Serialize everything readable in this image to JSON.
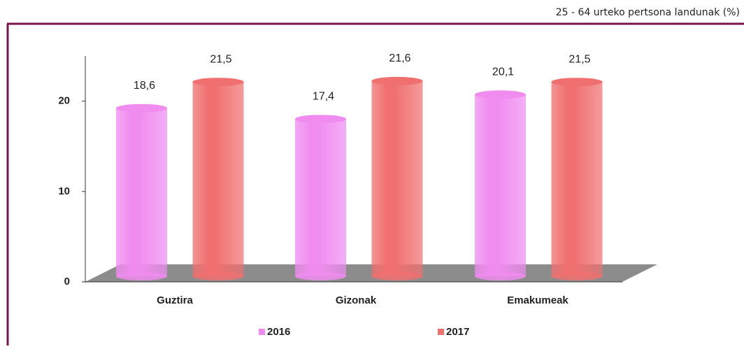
{
  "chart_data": {
    "type": "bar",
    "subtitle": "25 - 64  urteko pertsona landunak  (%)",
    "categories": [
      "Guztira",
      "Gizonak",
      "Emakumeak"
    ],
    "series": [
      {
        "name": "2016",
        "color": "#f08cf0",
        "values": [
          18.6,
          17.4,
          20.1
        ],
        "value_labels": [
          "18,6",
          "17,4",
          "20,1"
        ]
      },
      {
        "name": "2017",
        "color": "#f07070",
        "values": [
          21.5,
          21.6,
          21.5
        ],
        "value_labels": [
          "21,5",
          "21,6",
          "21,5"
        ]
      }
    ],
    "ylim": [
      0,
      25
    ],
    "yticks": [
      0,
      10,
      20
    ],
    "legend": "bottom"
  }
}
